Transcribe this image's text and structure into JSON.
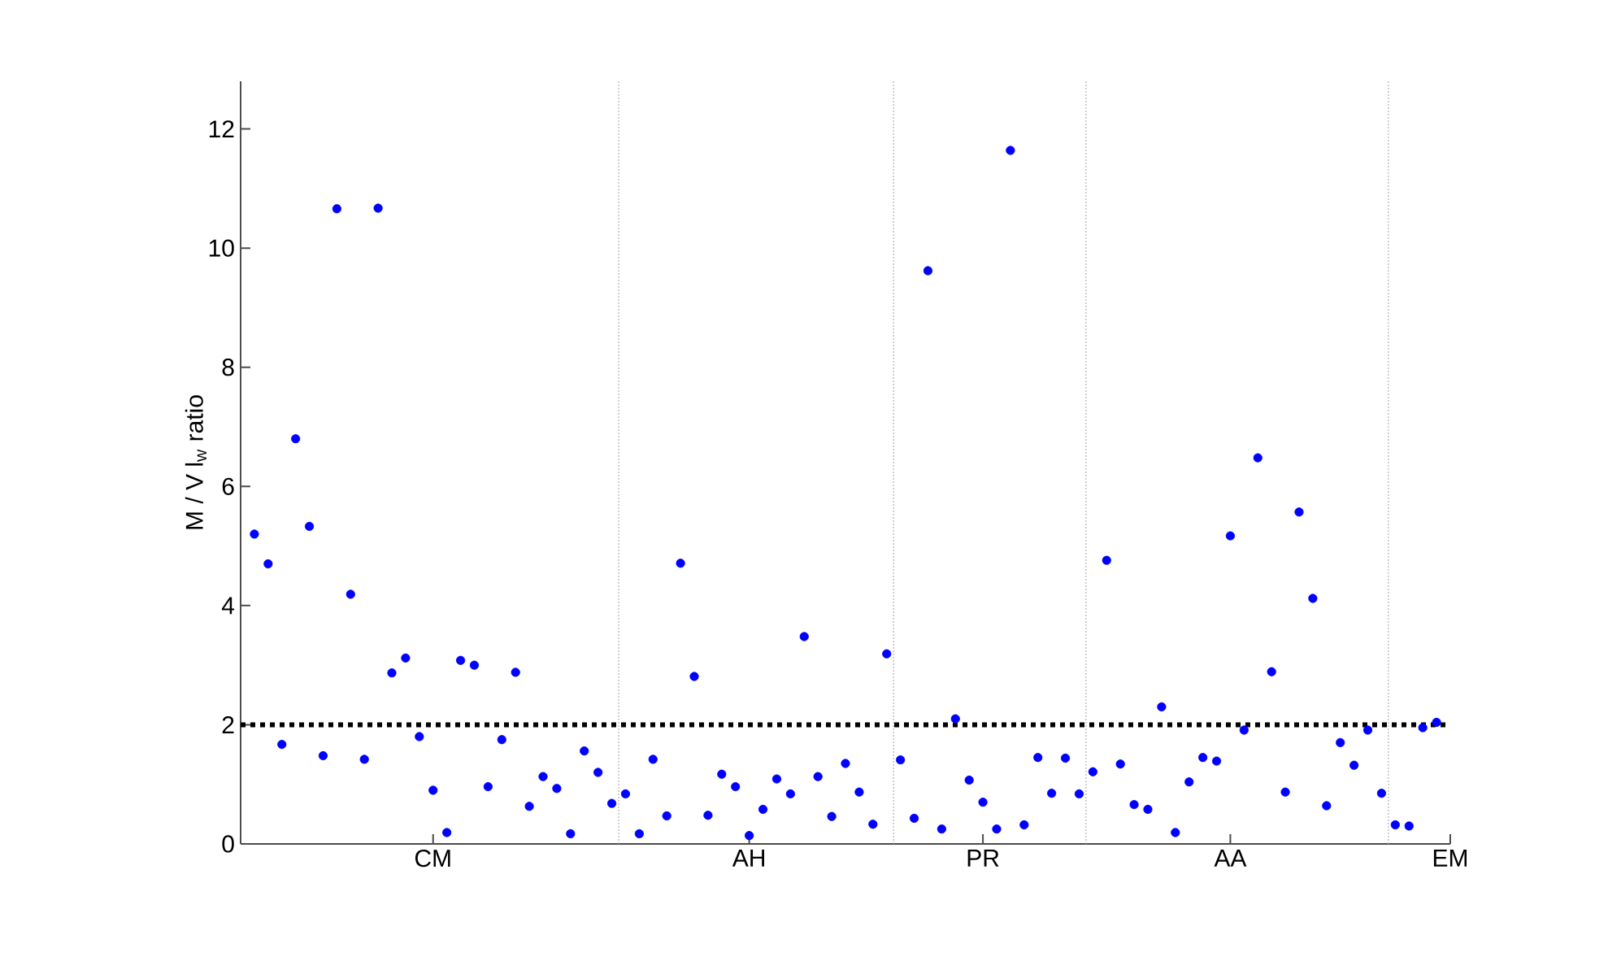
{
  "chart_data": {
    "type": "scatter",
    "ylabel": "M / V l$_{w}$ ratio",
    "categories": [
      null,
      null,
      null,
      null,
      null,
      null,
      null,
      null,
      null,
      null,
      null,
      null,
      null,
      "CM",
      null,
      null,
      null,
      null,
      null,
      null,
      null,
      null,
      null,
      null,
      null,
      null,
      null,
      null,
      null,
      null,
      null,
      null,
      null,
      null,
      null,
      null,
      "AH",
      null,
      null,
      null,
      null,
      null,
      null,
      null,
      null,
      null,
      null,
      null,
      null,
      null,
      null,
      null,
      null,
      "PR",
      null,
      null,
      null,
      null,
      null,
      null,
      null,
      null,
      null,
      null,
      null,
      null,
      null,
      null,
      null,
      null,
      null,
      "AA",
      null,
      null,
      null,
      null,
      null,
      null,
      null,
      null,
      null,
      null,
      null,
      null,
      null,
      null,
      null,
      "EM"
    ],
    "ylim": [
      0,
      12.8
    ],
    "yticks": [
      0,
      2,
      4,
      6,
      8,
      10,
      12
    ],
    "marker": "circle",
    "series": [
      {
        "color": "#0000ff",
        "values": [
          5.2,
          4.7,
          1.67,
          6.8,
          5.33,
          1.48,
          10.66,
          4.19,
          1.42,
          10.67,
          2.87,
          3.12,
          1.8,
          0.9,
          0.19,
          3.08,
          3.0,
          0.96,
          1.75,
          2.88,
          0.63,
          1.13,
          0.93,
          0.17,
          1.56,
          1.2,
          0.68,
          0.84,
          0.17,
          1.42,
          0.47,
          4.71,
          2.81,
          0.48,
          1.17,
          0.96,
          0.14,
          0.58,
          1.09,
          0.84,
          3.48,
          1.13,
          0.46,
          1.35,
          0.87,
          0.33,
          3.19,
          1.41,
          0.43,
          9.62,
          0.25,
          2.1,
          1.07,
          0.7,
          0.25,
          11.64,
          0.32,
          1.45,
          0.85,
          1.44,
          0.84,
          1.21,
          4.76,
          1.34,
          0.66,
          0.58,
          2.3,
          0.19,
          1.04,
          1.45,
          1.39,
          5.17,
          1.91,
          6.48,
          2.89,
          0.87,
          5.57,
          4.12,
          0.64,
          1.7,
          1.32,
          1.91,
          0.85,
          0.32,
          0.3,
          1.95,
          2.04,
          null
        ]
      }
    ],
    "ref_lines": [
      {
        "axis": "y",
        "value": 2,
        "color": "#000000",
        "line_style": "dotted"
      }
    ]
  }
}
